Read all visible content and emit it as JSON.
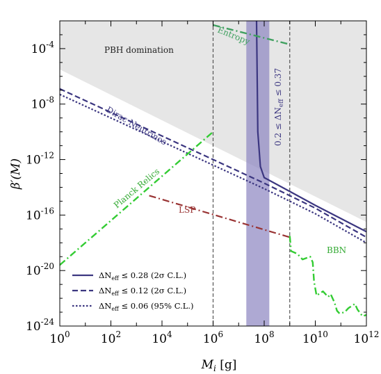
{
  "chart_data": {
    "type": "line",
    "xlabel": "M_i [g]",
    "ylabel": "β′(M)",
    "x_log": true,
    "y_log": true,
    "xlim_exp": [
      0,
      12
    ],
    "ylim_exp": [
      -24,
      -2
    ],
    "x_ticks": [
      {
        "base": "10",
        "exp": "0",
        "v": 0
      },
      {
        "base": "10",
        "exp": "2",
        "v": 2
      },
      {
        "base": "10",
        "exp": "4",
        "v": 4
      },
      {
        "base": "10",
        "exp": "6",
        "v": 6
      },
      {
        "base": "10",
        "exp": "8",
        "v": 8
      },
      {
        "base": "10",
        "exp": "10",
        "v": 10
      },
      {
        "base": "10",
        "exp": "12",
        "v": 12
      }
    ],
    "y_ticks": [
      {
        "base": "10",
        "exp": "-24",
        "v": -24
      },
      {
        "base": "10",
        "exp": "-20",
        "v": -20
      },
      {
        "base": "10",
        "exp": "-16",
        "v": -16
      },
      {
        "base": "10",
        "exp": "-12",
        "v": -12
      },
      {
        "base": "10",
        "exp": "-8",
        "v": -8
      },
      {
        "base": "10",
        "exp": "-4",
        "v": -4
      }
    ],
    "colors": {
      "neff": "#3b3680",
      "band": "#8c84c0",
      "green": "#33cc33",
      "lsp": "#993333",
      "entropy": "#40a060",
      "shade": "#e6e6e6",
      "vline": "#555555"
    },
    "annotations": {
      "pbh": "PBH domination",
      "entropy": "Entropy",
      "dirac": "Dirac Neutrinos",
      "planck": "Planck Relics",
      "lsp": "LSP",
      "bbn": "BBN",
      "band": "0.2 ≤ ΔN",
      "band_sub": "eff",
      "band_tail": " ≤ 0.37"
    },
    "legend": [
      {
        "pre": "ΔN",
        "sub": "eff",
        "post": " ≤ 0.28 (2σ C.L.)",
        "style": "solid"
      },
      {
        "pre": "ΔN",
        "sub": "eff",
        "post": " ≤ 0.12 (2σ C.L.)",
        "style": "dashed"
      },
      {
        "pre": "ΔN",
        "sub": "eff",
        "post": " ≤ 0.06 (95% C.L.)",
        "style": "dotted"
      }
    ],
    "vertical_lines_log10M": [
      6,
      9
    ],
    "band_log10M": [
      7.3,
      8.2
    ],
    "pbh_boundary": [
      [
        0,
        -5.5
      ],
      [
        12,
        -16.5
      ]
    ],
    "series": [
      {
        "key": "neff028",
        "style": "solid",
        "points": [
          [
            7.7,
            -2
          ],
          [
            7.75,
            -10
          ],
          [
            7.85,
            -12.5
          ],
          [
            8.0,
            -13.3
          ],
          [
            9.0,
            -14.3
          ],
          [
            10.0,
            -15.3
          ],
          [
            12.0,
            -17.2
          ]
        ]
      },
      {
        "key": "neff012",
        "style": "dashed",
        "points": [
          [
            0,
            -6.9
          ],
          [
            2,
            -8.6
          ],
          [
            4,
            -10.3
          ],
          [
            6,
            -12.0
          ],
          [
            8,
            -13.7
          ],
          [
            10,
            -15.5
          ],
          [
            12,
            -17.6
          ]
        ]
      },
      {
        "key": "neff006",
        "style": "dotted",
        "points": [
          [
            0,
            -7.3
          ],
          [
            2,
            -9.0
          ],
          [
            4,
            -10.7
          ],
          [
            6,
            -12.4
          ],
          [
            8,
            -14.1
          ],
          [
            10,
            -15.9
          ],
          [
            12,
            -18.0
          ]
        ]
      },
      {
        "key": "planck",
        "style": "dashdot",
        "points": [
          [
            0,
            -19.6
          ],
          [
            6,
            -10.0
          ]
        ]
      },
      {
        "key": "lsp",
        "style": "dashdot",
        "points": [
          [
            3.5,
            -14.6
          ],
          [
            9.0,
            -17.6
          ]
        ]
      },
      {
        "key": "entropy",
        "style": "dashdot",
        "points": [
          [
            6.0,
            -2.3
          ],
          [
            9.0,
            -3.7
          ]
        ]
      },
      {
        "key": "bbn",
        "style": "dashdot",
        "points": [
          [
            9.0,
            -17.5
          ],
          [
            9.05,
            -18.6
          ],
          [
            9.3,
            -18.8
          ],
          [
            9.5,
            -19.2
          ],
          [
            9.8,
            -19.0
          ],
          [
            9.9,
            -19.4
          ],
          [
            9.95,
            -20.8
          ],
          [
            10.05,
            -21.8
          ],
          [
            10.3,
            -21.5
          ],
          [
            10.5,
            -21.9
          ],
          [
            10.6,
            -21.7
          ],
          [
            10.75,
            -22.3
          ],
          [
            10.85,
            -22.9
          ],
          [
            10.95,
            -23.1
          ],
          [
            11.15,
            -23.0
          ],
          [
            11.3,
            -22.7
          ],
          [
            11.55,
            -22.4
          ],
          [
            11.65,
            -22.8
          ],
          [
            11.85,
            -23.3
          ],
          [
            12.0,
            -23.2
          ]
        ]
      }
    ]
  }
}
